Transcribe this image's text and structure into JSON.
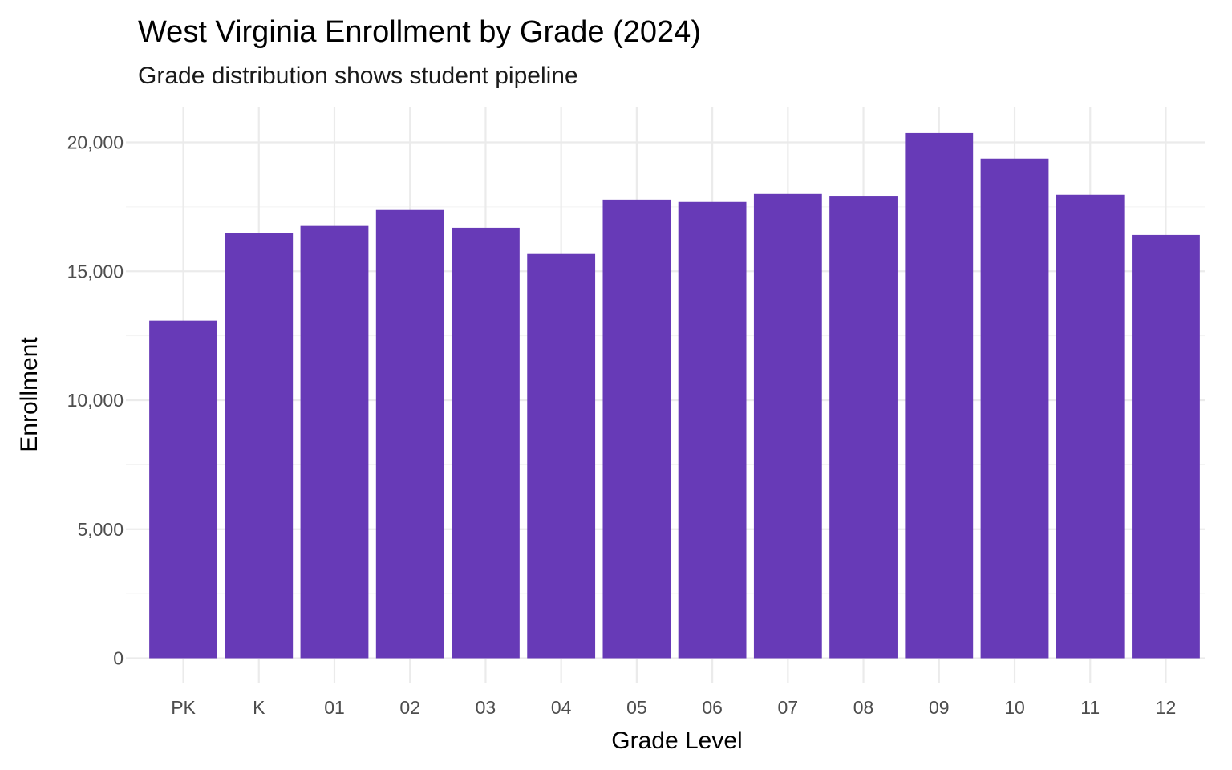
{
  "chart_data": {
    "type": "bar",
    "title": "West Virginia Enrollment by Grade (2024)",
    "subtitle": "Grade distribution shows student pipeline",
    "xlabel": "Grade Level",
    "ylabel": "Enrollment",
    "categories": [
      "PK",
      "K",
      "01",
      "02",
      "03",
      "04",
      "05",
      "06",
      "07",
      "08",
      "09",
      "10",
      "11",
      "12"
    ],
    "values": [
      13090,
      16480,
      16760,
      17380,
      16690,
      15670,
      17780,
      17690,
      18000,
      17930,
      20360,
      19370,
      17970,
      16410
    ],
    "ylim": [
      0,
      21300
    ],
    "yticks": [
      0,
      5000,
      10000,
      15000,
      20000
    ],
    "ytick_labels": [
      "0",
      "5,000",
      "10,000",
      "15,000",
      "20,000"
    ],
    "grid": true,
    "legend": "none",
    "bar_color": "#673AB7"
  }
}
